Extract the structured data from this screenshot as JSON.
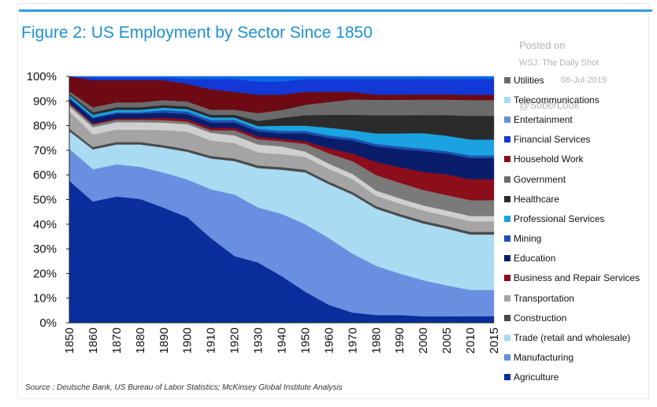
{
  "chart_data": {
    "type": "area",
    "title": "Figure 2: US Employment by Sector Since 1850",
    "source": "Source : Deutsche Bank, US Bureau of Labor Statistics; McKinsey Global Institute Analysis",
    "watermark": [
      "Posted on",
      "WSJ: The Daily Shot",
      "08-Jul-2019",
      "@SoberLook"
    ],
    "stacked": true,
    "ylim": [
      0,
      100
    ],
    "y_ticks": [
      "0%",
      "10%",
      "20%",
      "30%",
      "40%",
      "50%",
      "60%",
      "70%",
      "80%",
      "90%",
      "100%"
    ],
    "x": [
      "1850",
      "1860",
      "1870",
      "1880",
      "1890",
      "1900",
      "1910",
      "1920",
      "1930",
      "1940",
      "1950",
      "1960",
      "1970",
      "1980",
      "1990",
      "2000",
      "2005",
      "2010",
      "2015"
    ],
    "legend_position": "right",
    "series": [
      {
        "name": "Agriculture",
        "color": "#0a2f9c",
        "values": [
          57,
          49,
          51,
          50,
          46,
          42,
          33,
          26,
          23,
          18,
          12,
          7,
          4,
          3,
          3,
          2.5,
          2.5,
          2.5,
          2.5
        ]
      },
      {
        "name": "Manufacturing",
        "color": "#6a8fe0",
        "values": [
          13,
          13,
          13,
          13,
          14,
          15,
          19,
          24,
          21,
          24,
          26,
          26,
          23,
          19,
          16,
          14,
          12,
          10,
          10
        ]
      },
      {
        "name": "Trade (retail and wholesale)",
        "color": "#a9dbf2",
        "values": [
          7,
          8,
          8,
          9,
          10,
          11,
          12,
          13,
          15,
          17,
          20,
          21,
          23,
          22,
          22,
          22,
          22,
          21,
          21
        ]
      },
      {
        "name": "Construction",
        "color": "#4a4a4a",
        "values": [
          1,
          1,
          1,
          1,
          1,
          1,
          1,
          1,
          1,
          1,
          1,
          1,
          1,
          1,
          1,
          1,
          1,
          1,
          1
        ]
      },
      {
        "name": "Transportation",
        "color": "#a4a4a4",
        "values": [
          7,
          5,
          5,
          5,
          6,
          7,
          6,
          6,
          5,
          5,
          5,
          5,
          5,
          4,
          4,
          4,
          4,
          4,
          4
        ]
      },
      {
        "name": "Business and Repair Services",
        "color": "#cfcfcf",
        "values": [
          2,
          3,
          3,
          3,
          3,
          3,
          3,
          3,
          3,
          3,
          2,
          2,
          2,
          2,
          2,
          2,
          2,
          2,
          2
        ]
      },
      {
        "name": "Education",
        "color": "#7a7a7a",
        "values": [
          1,
          1,
          1,
          1,
          1,
          1,
          1,
          2,
          2,
          2,
          3,
          4,
          5,
          6,
          6,
          6,
          6,
          6,
          6
        ]
      },
      {
        "name": "Mining",
        "color": "#8b0e1a",
        "values": [
          0.5,
          0.5,
          0.5,
          0.5,
          1,
          1,
          1,
          1,
          1,
          1,
          1,
          2,
          3,
          5,
          6,
          7,
          8,
          8,
          8
        ]
      },
      {
        "name": "Professional Services",
        "color": "#0a1d6b",
        "values": [
          1.5,
          2,
          2,
          2,
          2,
          2,
          2,
          2,
          2,
          2,
          3,
          4,
          5,
          6,
          7,
          8,
          8,
          8,
          8
        ]
      },
      {
        "name": "Healthcare",
        "color": "#1e4fb0",
        "values": [
          0.5,
          0.5,
          0.5,
          0.5,
          1,
          1,
          1,
          1,
          1,
          1,
          1,
          1,
          1,
          1,
          1,
          1,
          1,
          1,
          1
        ]
      },
      {
        "name": "Government",
        "color": "#1aa3e0",
        "values": [
          1,
          1,
          1,
          1,
          1,
          1,
          1,
          1,
          1,
          2,
          2,
          3,
          3,
          4,
          5,
          6,
          6,
          6,
          6
        ]
      },
      {
        "name": "Household Work",
        "color": "#2b2b2b",
        "values": [
          0.5,
          1,
          1,
          1,
          1,
          1,
          1,
          1,
          2,
          3,
          4,
          5,
          6,
          7,
          7,
          7,
          8,
          9,
          9
        ]
      },
      {
        "name": "Financial Services",
        "color": "#6b6b6b",
        "values": [
          1,
          2,
          2,
          2,
          2,
          2,
          2,
          2,
          3,
          3,
          4,
          5,
          6,
          6,
          6,
          6,
          6,
          6,
          6
        ]
      },
      {
        "name": "Entertainment",
        "color": "#6d0a14",
        "values": [
          6,
          11,
          9,
          9,
          8,
          7,
          8,
          7,
          7,
          6,
          5,
          4,
          3,
          2,
          2,
          2,
          2,
          2,
          2
        ]
      },
      {
        "name": "Telecommunications",
        "color": "#1238d6",
        "values": [
          0,
          1,
          1,
          1,
          1,
          2,
          4,
          5,
          5,
          5,
          5,
          5,
          5,
          6,
          6,
          6,
          6,
          6,
          6
        ]
      },
      {
        "name": "Utilities",
        "color": "#0a66e6",
        "values": [
          0,
          0.5,
          0.5,
          0.5,
          0.5,
          1,
          1,
          1,
          2,
          2,
          1,
          1,
          1,
          1,
          1,
          1,
          1,
          1,
          1
        ]
      }
    ],
    "legend_labels": [
      "Utilities",
      "Telecommunications",
      "Entertainment",
      "Financial Services",
      "Household Work",
      "Government",
      "Healthcare",
      "Professional Services",
      "Mining",
      "Education",
      "Business and Repair Services",
      "Transportation",
      "Construction",
      "Trade (retail and wholesale)",
      "Manufacturing",
      "Agriculture"
    ],
    "legend_colors": [
      "#6b6b6b",
      "#a9dbf2",
      "#6a8fe0",
      "#1238d6",
      "#8b0e1a",
      "#6b6b6b",
      "#2b2b2b",
      "#1aa3e0",
      "#1e4fb0",
      "#0a1d6b",
      "#8b0e1a",
      "#a4a4a4",
      "#4a4a4a",
      "#a9dbf2",
      "#6a8fe0",
      "#0a2f9c"
    ]
  }
}
